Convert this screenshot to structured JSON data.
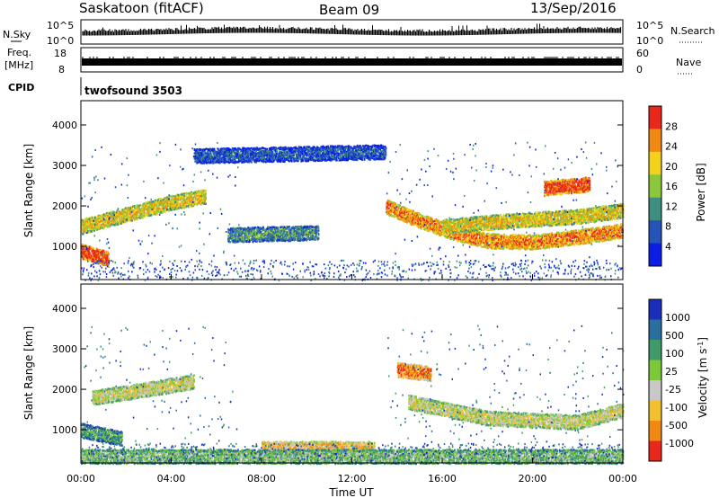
{
  "header": {
    "title": "Saskatoon (fitACF)",
    "beam": "Beam 09",
    "date": "13/Sep/2016"
  },
  "strips": {
    "nsky_label": "N.Sky",
    "nsky_top": "10^5",
    "nsky_bottom": "10^0",
    "freq_label_line1": "Freq.",
    "freq_label_line2": "[MHz]",
    "freq_top": "18",
    "freq_bottom": "8",
    "nsearch_label": "N.Search",
    "nsearch_top": "10^5",
    "nsearch_bottom": "10^0",
    "nave_label": "Nave",
    "nave_top": "60",
    "nave_bottom": "0",
    "cpid_label": "CPID",
    "cpid_value": "twofsound 3503"
  },
  "chart_data": [
    {
      "type": "heatmap",
      "panel": "power",
      "ylabel": "Slant Range [km]",
      "yticks": [
        1000,
        2000,
        3000,
        4000
      ],
      "ylim": [
        180,
        4600
      ],
      "colorbar_label": "Power [dB]",
      "colorbar_ticks": [
        "4",
        "8",
        "12",
        "16",
        "20",
        "24",
        "28"
      ],
      "colors": [
        "#0a1ee6",
        "#2553b8",
        "#3f8f80",
        "#8cc63a",
        "#f2d21a",
        "#f08a12",
        "#e8281a"
      ],
      "bands": [
        {
          "hours": [
            0.0,
            2.0,
            4.0,
            5.5
          ],
          "range_km": [
            1500,
            1800,
            2100,
            2250
          ],
          "level": 4
        },
        {
          "hours": [
            0.0,
            1.2
          ],
          "range_km": [
            900,
            700
          ],
          "level": 6
        },
        {
          "hours": [
            13.5,
            15.0,
            16.5,
            18.0,
            20.0,
            22.0,
            24.0
          ],
          "range_km": [
            2000,
            1650,
            1350,
            1150,
            1120,
            1250,
            1400
          ],
          "level": 5
        },
        {
          "hours": [
            16.0,
            19.0,
            22.0,
            24.0
          ],
          "range_km": [
            1500,
            1650,
            1750,
            1900
          ],
          "level": 4
        },
        {
          "hours": [
            20.5,
            22.5
          ],
          "range_km": [
            2450,
            2550
          ],
          "level": 6
        },
        {
          "hours": [
            6.5,
            10.5
          ],
          "range_km": [
            1300,
            1350
          ],
          "level": 2
        },
        {
          "hours": [
            5.0,
            13.5
          ],
          "range_km": [
            3250,
            3350
          ],
          "level": 1
        }
      ]
    },
    {
      "type": "heatmap",
      "panel": "velocity",
      "xlabel": "Time UT",
      "ylabel": "Slant Range [km]",
      "xticks": [
        "00:00",
        "04:00",
        "08:00",
        "12:00",
        "16:00",
        "20:00",
        "00:00"
      ],
      "xlim_hours": [
        0,
        24
      ],
      "yticks": [
        1000,
        2000,
        3000,
        4000
      ],
      "ylim": [
        180,
        4600
      ],
      "colorbar_label": "Velocity [m s^-1]",
      "colorbar_ticks": [
        "1000",
        "500",
        "100",
        "25",
        "-25",
        "-100",
        "-500",
        "-1000"
      ],
      "colors": [
        "#1a2fb8",
        "#2a6fa0",
        "#3f9a6a",
        "#7cc83a",
        "#c8c8c8",
        "#f2c030",
        "#f08a12",
        "#e8281a"
      ],
      "bands": [
        {
          "hours": [
            0.5,
            5.0
          ],
          "range_km": [
            1800,
            2200
          ],
          "level": 4
        },
        {
          "hours": [
            14.5,
            18.0,
            22.0,
            24.0
          ],
          "range_km": [
            1700,
            1300,
            1200,
            1500
          ],
          "level": 4
        },
        {
          "hours": [
            0.0,
            1.8
          ],
          "range_km": [
            1000,
            800
          ],
          "level": 2
        },
        {
          "hours": [
            14.0,
            15.5
          ],
          "range_km": [
            2500,
            2400
          ],
          "level": 6
        },
        {
          "hours": [
            8.0,
            13.0
          ],
          "range_km": [
            550,
            550
          ],
          "level": 5
        },
        {
          "hours": [
            0.0,
            24.0
          ],
          "range_km": [
            350,
            350
          ],
          "level": 3
        }
      ]
    }
  ]
}
